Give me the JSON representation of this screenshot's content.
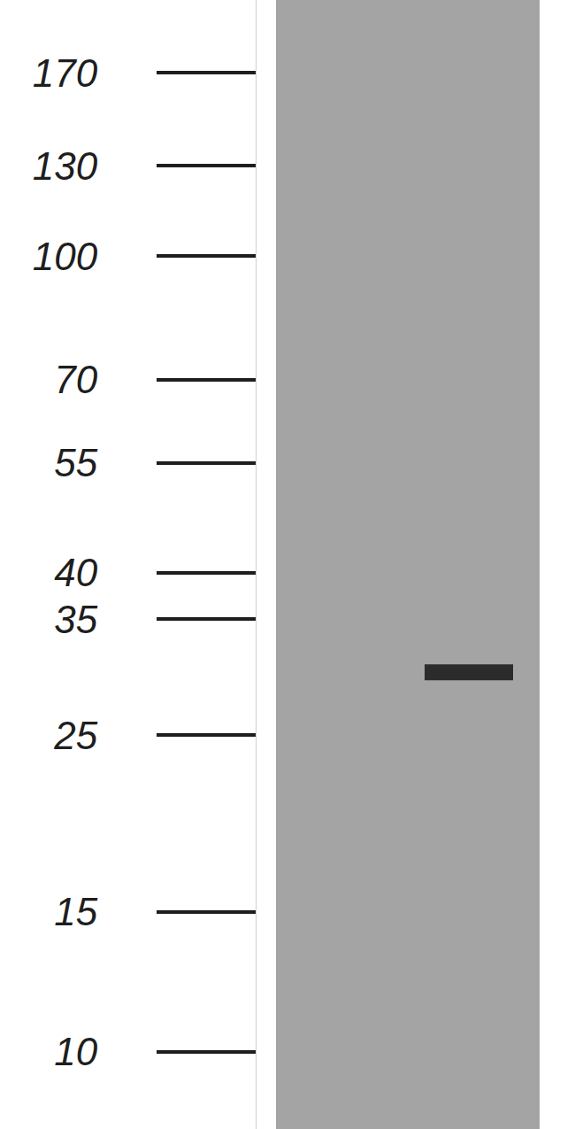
{
  "chart_data": {
    "type": "blot",
    "log": "y",
    "ylim": [
      8,
      210
    ],
    "yticks": [
      10,
      15,
      25,
      35,
      40,
      55,
      70,
      100,
      130,
      170
    ],
    "values": [
      30
    ],
    "color": "#2b2b2b",
    "grid": false
  }
}
